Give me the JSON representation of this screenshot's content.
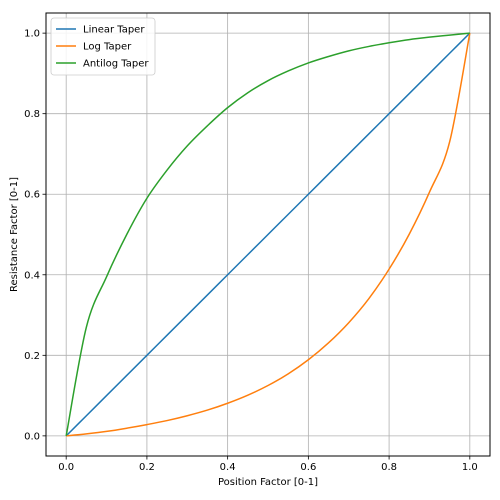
{
  "chart_data": {
    "type": "line",
    "title": "",
    "xlabel": "Position Factor [0-1]",
    "ylabel": "Resistance Factor [0-1]",
    "xlim": [
      -0.05,
      1.05
    ],
    "ylim": [
      -0.05,
      1.05
    ],
    "xticks": [
      "0.0",
      "0.2",
      "0.4",
      "0.6",
      "0.8",
      "1.0"
    ],
    "yticks": [
      "0.0",
      "0.2",
      "0.4",
      "0.6",
      "0.8",
      "1.0"
    ],
    "grid": true,
    "legend_position": "top-left",
    "x": [
      0.0,
      0.05,
      0.1,
      0.15,
      0.2,
      0.25,
      0.3,
      0.35,
      0.4,
      0.45,
      0.5,
      0.55,
      0.6,
      0.65,
      0.7,
      0.75,
      0.8,
      0.85,
      0.9,
      0.95,
      1.0
    ],
    "series": [
      {
        "name": "Linear Taper",
        "color": "#1f77b4",
        "values": [
          0.0,
          0.05,
          0.1,
          0.15,
          0.2,
          0.25,
          0.3,
          0.35,
          0.4,
          0.45,
          0.5,
          0.55,
          0.6,
          0.65,
          0.7,
          0.75,
          0.8,
          0.85,
          0.9,
          0.95,
          1.0
        ]
      },
      {
        "name": "Log Taper",
        "color": "#ff7f0e",
        "values": [
          0.0,
          0.005,
          0.011,
          0.019,
          0.028,
          0.038,
          0.05,
          0.064,
          0.081,
          0.101,
          0.125,
          0.154,
          0.189,
          0.231,
          0.281,
          0.341,
          0.414,
          0.501,
          0.605,
          0.73,
          1.0
        ]
      },
      {
        "name": "Antilog Taper",
        "color": "#2ca02c",
        "values": [
          0.0,
          0.27,
          0.395,
          0.5,
          0.59,
          0.66,
          0.72,
          0.77,
          0.815,
          0.852,
          0.882,
          0.906,
          0.926,
          0.942,
          0.956,
          0.967,
          0.976,
          0.984,
          0.99,
          0.995,
          1.0
        ]
      }
    ]
  }
}
